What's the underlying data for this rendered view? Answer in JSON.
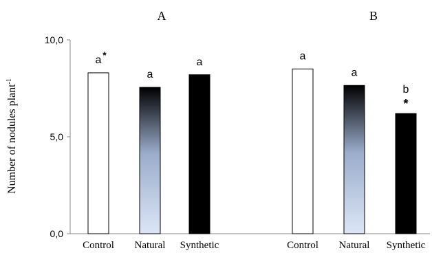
{
  "chart_data": {
    "type": "bar",
    "ylabel": "Number of nodules plant",
    "ylabel_superscript": "-1",
    "ylim": [
      0,
      10
    ],
    "yticks": [
      "0,0",
      "5,0",
      "10,0"
    ],
    "ytick_values": [
      0,
      5,
      10
    ],
    "grid": false,
    "panels": [
      {
        "label": "A",
        "categories": [
          "Control",
          "Natural",
          "Synthetic"
        ],
        "values": [
          8.3,
          7.55,
          8.2
        ],
        "annotations": [
          "a",
          "a",
          "a"
        ],
        "asterisks": [
          "*",
          "",
          ""
        ]
      },
      {
        "label": "B",
        "categories": [
          "Control",
          "Natural",
          "Synthetic"
        ],
        "values": [
          8.5,
          7.65,
          6.2
        ],
        "annotations": [
          "a",
          "a",
          "b"
        ],
        "asterisks": [
          "",
          "",
          "*"
        ]
      }
    ]
  },
  "colors": {
    "control": "#ffffff",
    "natural_top": "#000000",
    "natural_mid": "#9aaccb",
    "natural_bottom": "#dce6f6",
    "synthetic": "#000000"
  }
}
